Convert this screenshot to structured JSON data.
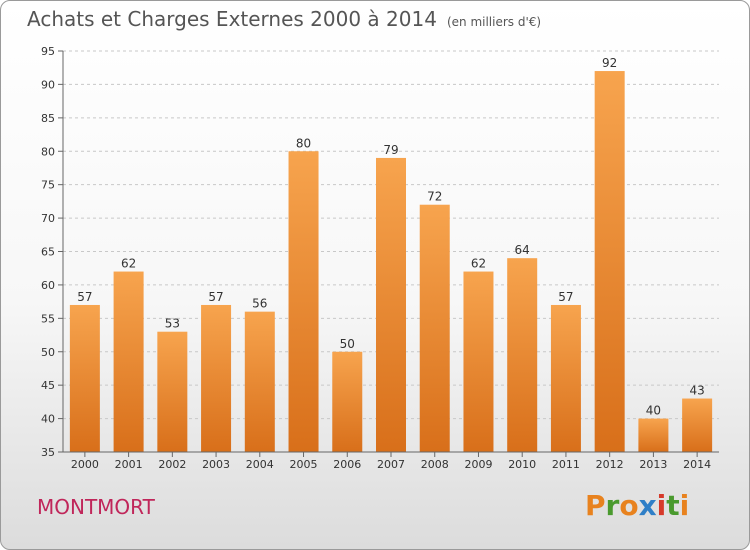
{
  "header": {
    "title": "Achats et Charges Externes 2000 à 2014",
    "unit": "(en milliers d'€)"
  },
  "footer": {
    "commune": "MONTMORT",
    "logo": "Proxiti"
  },
  "colors": {
    "bar_light": "#f7a44e",
    "bar_dark": "#d86f1a",
    "commune": "#c0265a",
    "logo_letters": [
      "#e8821e",
      "#4a9a2e",
      "#e8821e",
      "#2f7fc7",
      "#d63a2a",
      "#4a9a2e",
      "#e8821e"
    ]
  },
  "chart_data": {
    "type": "bar",
    "title": "Achats et Charges Externes 2000 à 2014",
    "unit": "(en milliers d'€)",
    "categories": [
      "2000",
      "2001",
      "2002",
      "2003",
      "2004",
      "2005",
      "2006",
      "2007",
      "2008",
      "2009",
      "2010",
      "2011",
      "2012",
      "2013",
      "2014"
    ],
    "values": [
      57,
      62,
      53,
      57,
      56,
      80,
      50,
      79,
      72,
      62,
      64,
      57,
      92,
      40,
      43
    ],
    "ylim": [
      35,
      95
    ],
    "yticks": [
      35,
      40,
      45,
      50,
      55,
      60,
      65,
      70,
      75,
      80,
      85,
      90,
      95
    ],
    "grid": "horizontal-dashed",
    "data_labels": true
  }
}
